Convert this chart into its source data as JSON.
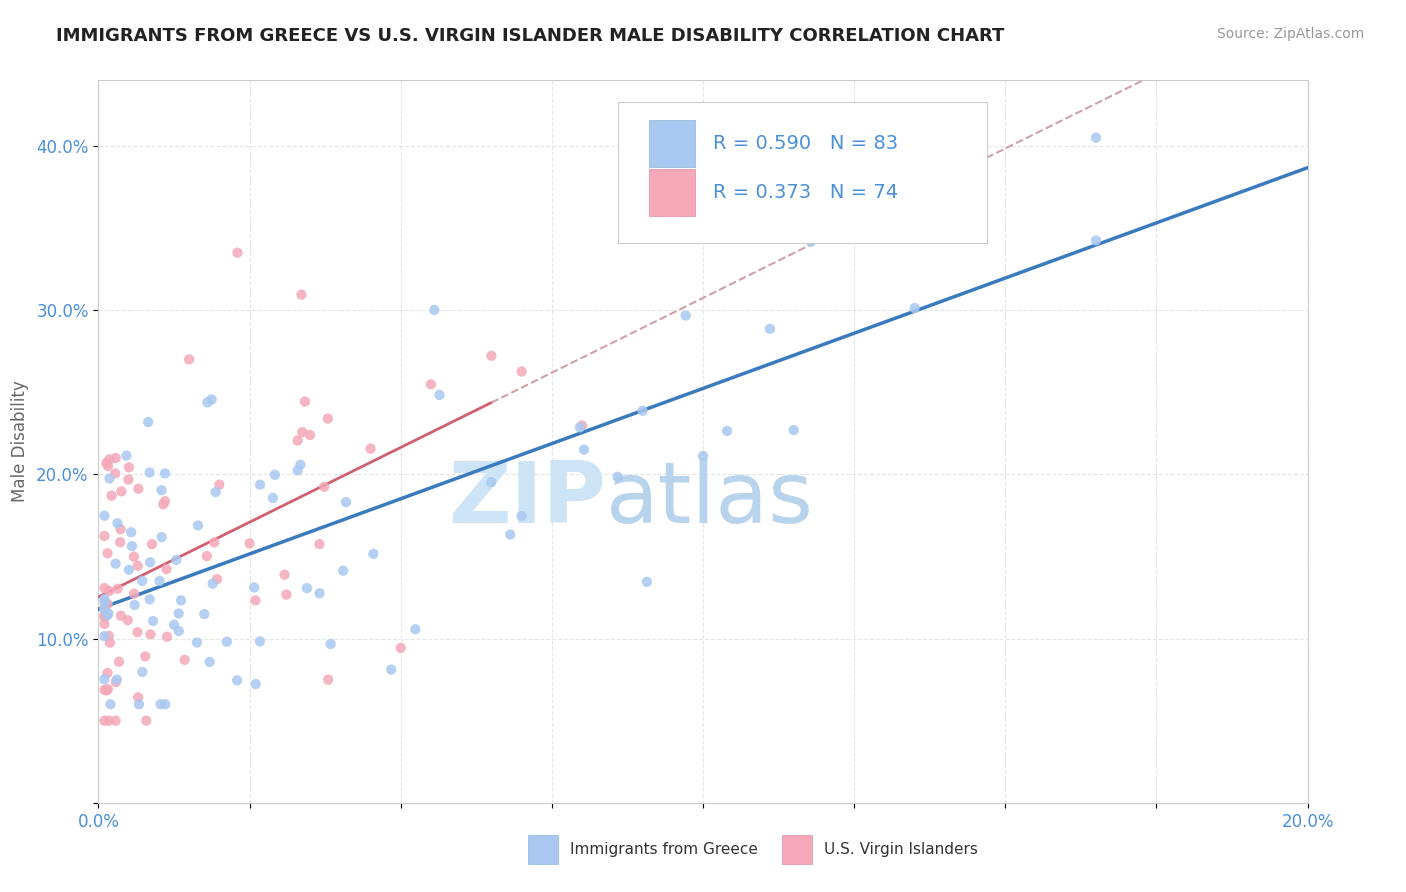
{
  "title": "IMMIGRANTS FROM GREECE VS U.S. VIRGIN ISLANDER MALE DISABILITY CORRELATION CHART",
  "source": "Source: ZipAtlas.com",
  "ylabel": "Male Disability",
  "xlim": [
    0.0,
    0.2
  ],
  "ylim": [
    0.0,
    0.44
  ],
  "legend_series1": "Immigrants from Greece",
  "legend_series2": "U.S. Virgin Islanders",
  "R1": 0.59,
  "N1": 83,
  "R2": 0.373,
  "N2": 74,
  "color1": "#a8c8f0",
  "color2": "#f4a8b8",
  "line_color1": "#3a7abf",
  "line_color2": "#d06070",
  "line_color2_dash": "#d0a0a8",
  "title_color": "#222222",
  "axis_color": "#4a90d9",
  "background_color": "#ffffff",
  "watermark_zip_color": "#d8ecfa",
  "watermark_atlas_color": "#c0d8f0",
  "grid_color": "#e0e0e0",
  "legend_box_color": "#cccccc"
}
